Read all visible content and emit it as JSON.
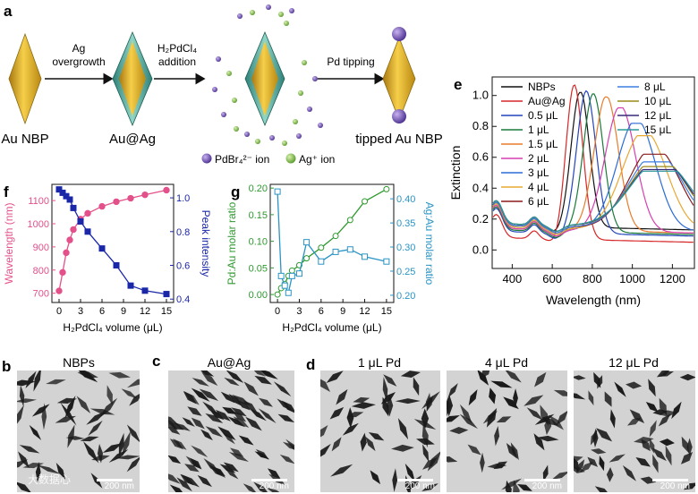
{
  "panel_labels": {
    "a": "a",
    "b": "b",
    "c": "c",
    "d": "d",
    "e": "e",
    "f": "f",
    "g": "g"
  },
  "schematic": {
    "np_labels": [
      "Au NBP",
      "Au@Ag",
      "tipped Au NBP"
    ],
    "step1": [
      "Ag",
      "overgrowth"
    ],
    "step2": [
      "H₂PdCl₄",
      "addition"
    ],
    "step3": "Pd tipping",
    "legend_pd": "PdBr₄²⁻ ion",
    "legend_ag": "Ag⁺ ion",
    "colors": {
      "gold": "#d9a520",
      "ag_shell": "#4aa89a",
      "pd": "#7a55b5",
      "ag_ion": "#8fc35a"
    }
  },
  "tem": {
    "titles": [
      "NBPs",
      "Au@Ag",
      "1 μL Pd",
      "4 μL Pd",
      "12 μL Pd"
    ],
    "scale_bar": "200 nm",
    "watermark": "大数据心"
  },
  "chart_data": [
    {
      "id": "f",
      "type": "line",
      "xlabel": "H₂PdCl₄ volume (μL)",
      "ylabel_left": "Wavelength (nm)",
      "ylabel_right": "Peak intensity",
      "x_ticks": [
        0,
        3,
        6,
        9,
        12,
        15
      ],
      "y_left_ticks": [
        700,
        800,
        900,
        1000,
        1100
      ],
      "y_right_ticks": [
        0.4,
        0.6,
        0.8,
        1.0
      ],
      "xlim": [
        -1,
        16
      ],
      "ylim_left": [
        660,
        1170
      ],
      "ylim_right": [
        0.38,
        1.08
      ],
      "series": [
        {
          "name": "Wavelength (nm)",
          "axis": "left",
          "color": "#e4508a",
          "marker": "circle",
          "x": [
            0,
            0.5,
            1,
            1.5,
            2,
            3,
            4,
            6,
            8,
            10,
            12,
            15
          ],
          "y": [
            710,
            790,
            875,
            930,
            975,
            1020,
            1045,
            1075,
            1095,
            1110,
            1125,
            1145
          ]
        },
        {
          "name": "Peak intensity",
          "axis": "right",
          "color": "#1a27a8",
          "marker": "square",
          "x": [
            0,
            0.5,
            1,
            1.5,
            2,
            3,
            4,
            6,
            8,
            10,
            12,
            15
          ],
          "y": [
            1.05,
            1.03,
            1.01,
            0.99,
            0.94,
            0.86,
            0.8,
            0.7,
            0.6,
            0.48,
            0.45,
            0.43
          ]
        }
      ]
    },
    {
      "id": "g",
      "type": "line",
      "xlabel": "H₂PdCl₄ volume (μL)",
      "ylabel_left": "Pd:Au molar ratio",
      "ylabel_right": "Ag:Au molar ratio",
      "x_ticks": [
        0,
        3,
        6,
        9,
        12,
        15
      ],
      "y_left_ticks": [
        0.0,
        0.05,
        0.1,
        0.15,
        0.2
      ],
      "y_right_ticks": [
        0.2,
        0.25,
        0.3,
        0.35,
        0.4
      ],
      "xlim": [
        -1,
        16
      ],
      "ylim_left": [
        -0.015,
        0.207
      ],
      "ylim_right": [
        0.185,
        0.43
      ],
      "series": [
        {
          "name": "Pd:Au molar ratio",
          "axis": "left",
          "color": "#2f9a2f",
          "marker": "circle",
          "x": [
            0,
            0.5,
            1,
            1.5,
            2,
            3,
            4,
            6,
            8,
            10,
            12,
            15
          ],
          "y": [
            0.0,
            0.012,
            0.02,
            0.035,
            0.045,
            0.055,
            0.068,
            0.088,
            0.11,
            0.14,
            0.175,
            0.198
          ]
        },
        {
          "name": "Ag:Au molar ratio",
          "axis": "right",
          "color": "#2a94c4",
          "marker": "square",
          "x": [
            0,
            0.5,
            1,
            1.5,
            2,
            3,
            4,
            6,
            8,
            10,
            12,
            15
          ],
          "y": [
            0.415,
            0.24,
            0.22,
            0.205,
            0.24,
            0.245,
            0.31,
            0.27,
            0.29,
            0.295,
            0.28,
            0.27
          ]
        }
      ]
    },
    {
      "id": "e",
      "type": "line",
      "xlabel": "Wavelength (nm)",
      "ylabel": "Extinction",
      "x_ticks": [
        400,
        600,
        800,
        1000,
        1200
      ],
      "y_ticks": [
        0.0,
        0.2,
        0.4,
        0.6,
        0.8,
        1.0
      ],
      "xlim": [
        300,
        1310
      ],
      "ylim": [
        -0.12,
        1.12
      ],
      "base": 0.12,
      "series": [
        {
          "name": "NBPs",
          "color": "#111111",
          "peak": 740,
          "amp": 1.0,
          "width": 45,
          "offset": 0.04
        },
        {
          "name": "Au@Ag",
          "color": "#d62728",
          "peak": 710,
          "amp": 1.06,
          "width": 42,
          "offset": -0.04
        },
        {
          "name": "0.5 μL",
          "color": "#2244bb",
          "peak": 770,
          "amp": 1.01,
          "width": 48,
          "offset": 0.0
        },
        {
          "name": "1 μL",
          "color": "#1a7a3a",
          "peak": 805,
          "amp": 0.99,
          "width": 50,
          "offset": 0.01
        },
        {
          "name": "1.5 μL",
          "color": "#e87b2c",
          "peak": 870,
          "amp": 0.97,
          "width": 60,
          "offset": 0.02
        },
        {
          "name": "2 μL",
          "color": "#d63fb0",
          "peak": 940,
          "amp": 0.9,
          "width": 75,
          "offset": 0.02
        },
        {
          "name": "3 μL",
          "color": "#2b6bd6",
          "peak": 1020,
          "amp": 0.8,
          "width": 95,
          "offset": 0.03
        },
        {
          "name": "4 μL",
          "color": "#e8a830",
          "peak": 1060,
          "amp": 0.72,
          "width": 110,
          "offset": 0.03
        },
        {
          "name": "6 μL",
          "color": "#8b1a1a",
          "peak": 1110,
          "amp": 0.6,
          "width": 125,
          "offset": 0.04
        },
        {
          "name": "8 μL",
          "color": "#3d7fe0",
          "peak": 1120,
          "amp": 0.55,
          "width": 135,
          "offset": 0.04
        },
        {
          "name": "10 μL",
          "color": "#9a8a1a",
          "peak": 1130,
          "amp": 0.52,
          "width": 140,
          "offset": 0.05
        },
        {
          "name": "12 μL",
          "color": "#3a2a7a",
          "peak": 1135,
          "amp": 0.5,
          "width": 145,
          "offset": 0.05
        },
        {
          "name": "15 μL",
          "color": "#2a9a9a",
          "peak": 1140,
          "amp": 0.49,
          "width": 150,
          "offset": 0.05
        }
      ]
    }
  ]
}
